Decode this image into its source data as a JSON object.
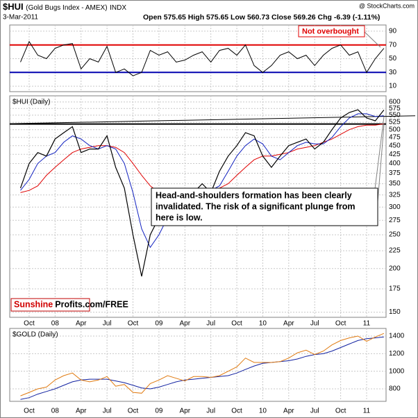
{
  "header": {
    "title": "$HUI",
    "subtitle": "(Gold Bugs Index - AMEX)",
    "exchange": "INDX",
    "date": "3-Mar-2011",
    "quote": "Open 575.65  High 575.65  Low 560.73  Close 569.26  Chg -6.39 (-1.11%)",
    "source": "@ StockCharts.com"
  },
  "chart_data": [
    {
      "type": "line",
      "categories": [
        null,
        "Oct",
        null,
        null,
        "08",
        null,
        null,
        "Apr",
        null,
        null,
        "Jul",
        null,
        null,
        "Oct",
        null,
        null,
        "09",
        null,
        null,
        "Apr",
        null,
        null,
        "Jul",
        null,
        null,
        "Oct",
        null,
        null,
        "10",
        null,
        null,
        "Apr",
        null,
        null,
        "Jul",
        null,
        null,
        "Oct",
        null,
        null,
        "11",
        null,
        null
      ],
      "series": [
        {
          "color": "#000000",
          "values": [
            45,
            75,
            55,
            50,
            65,
            70,
            72,
            35,
            50,
            45,
            68,
            30,
            35,
            25,
            30,
            62,
            55,
            60,
            45,
            48,
            55,
            60,
            45,
            62,
            65,
            55,
            70,
            40,
            30,
            40,
            55,
            60,
            50,
            55,
            40,
            55,
            65,
            70,
            55,
            60,
            30,
            50,
            65
          ]
        }
      ],
      "ylim": [
        2,
        99
      ],
      "yticks": [
        10,
        30,
        50,
        70,
        90
      ],
      "grid": true,
      "reference_lines": [
        {
          "value": 70,
          "color": "#e00000"
        },
        {
          "value": 30,
          "color": "#0000b0"
        }
      ],
      "annotation": "Not overbought"
    },
    {
      "type": "line",
      "title": "$HUI (Daily)",
      "categories": [
        null,
        "Oct",
        null,
        null,
        "08",
        null,
        null,
        "Apr",
        null,
        null,
        "Jul",
        null,
        null,
        "Oct",
        null,
        null,
        "09",
        null,
        null,
        "Apr",
        null,
        null,
        "Jul",
        null,
        null,
        "Oct",
        null,
        null,
        "10",
        null,
        null,
        "Apr",
        null,
        null,
        "Jul",
        null,
        null,
        "Oct",
        null,
        null,
        "11",
        null,
        null
      ],
      "series": [
        {
          "color": "#000000",
          "values": [
            340,
            400,
            430,
            420,
            470,
            490,
            510,
            430,
            440,
            440,
            480,
            390,
            340,
            250,
            190,
            250,
            280,
            330,
            300,
            300,
            330,
            350,
            330,
            380,
            420,
            450,
            490,
            480,
            420,
            390,
            420,
            450,
            460,
            470,
            440,
            460,
            500,
            540,
            560,
            570,
            540,
            530,
            569.26
          ]
        },
        {
          "color": "#1020c0",
          "values": [
            335,
            360,
            400,
            420,
            430,
            460,
            480,
            470,
            450,
            440,
            450,
            440,
            400,
            330,
            260,
            230,
            250,
            280,
            300,
            310,
            310,
            330,
            335,
            345,
            380,
            420,
            450,
            470,
            455,
            420,
            410,
            430,
            450,
            460,
            455,
            455,
            475,
            510,
            540,
            555,
            555,
            545,
            548
          ]
        },
        {
          "color": "#e00000",
          "values": [
            330,
            335,
            345,
            370,
            390,
            410,
            430,
            440,
            445,
            450,
            450,
            445,
            430,
            400,
            370,
            345,
            330,
            320,
            315,
            320,
            330,
            330,
            335,
            340,
            350,
            370,
            390,
            410,
            420,
            420,
            425,
            430,
            440,
            445,
            450,
            460,
            470,
            485,
            500,
            510,
            515,
            515,
            520
          ]
        }
      ],
      "ylim": [
        145,
        625
      ],
      "log": true,
      "grid": true,
      "yticks": [
        150,
        175,
        200,
        225,
        250,
        275,
        300,
        325,
        350,
        375,
        400,
        425,
        450,
        475,
        500,
        525,
        550,
        575,
        600
      ],
      "reference_lines": [
        {
          "value": 519,
          "color": "#000000"
        }
      ],
      "trend_line": [
        520,
        548
      ],
      "annotation": [
        "Head-and-shoulders formation has been clearly",
        "invalidated. The risk of a significant plunge from",
        "here is low."
      ],
      "watermark": [
        "Sunshine",
        "Profits.com/FREE"
      ]
    },
    {
      "type": "line",
      "title": "$GOLD (Daily)",
      "categories": [
        null,
        "Oct",
        null,
        null,
        "08",
        null,
        null,
        "Apr",
        null,
        null,
        "Jul",
        null,
        null,
        "Oct",
        null,
        null,
        "09",
        null,
        null,
        "Apr",
        null,
        null,
        "Jul",
        null,
        null,
        "Oct",
        null,
        null,
        "10",
        null,
        null,
        "Apr",
        null,
        null,
        "Jul",
        null,
        null,
        "Oct",
        null,
        null,
        "11",
        null,
        null
      ],
      "series": [
        {
          "color": "#e07a10",
          "values": [
            720,
            760,
            800,
            820,
            900,
            950,
            980,
            900,
            880,
            900,
            940,
            830,
            850,
            760,
            750,
            860,
            900,
            950,
            920,
            890,
            940,
            940,
            930,
            950,
            1000,
            1050,
            1150,
            1100,
            1100,
            1100,
            1110,
            1150,
            1210,
            1240,
            1190,
            1230,
            1300,
            1350,
            1380,
            1400,
            1340,
            1390,
            1430
          ]
        },
        {
          "color": "#1020a0",
          "values": [
            680,
            700,
            740,
            770,
            800,
            840,
            880,
            900,
            910,
            910,
            910,
            890,
            870,
            840,
            810,
            800,
            820,
            850,
            880,
            900,
            910,
            920,
            930,
            940,
            950,
            980,
            1020,
            1060,
            1090,
            1100,
            1110,
            1120,
            1140,
            1170,
            1190,
            1200,
            1230,
            1270,
            1310,
            1350,
            1370,
            1380,
            1390
          ]
        }
      ],
      "ylim": [
        658,
        1487
      ],
      "yticks": [
        800,
        1000,
        1200,
        1400
      ],
      "grid": true
    }
  ]
}
